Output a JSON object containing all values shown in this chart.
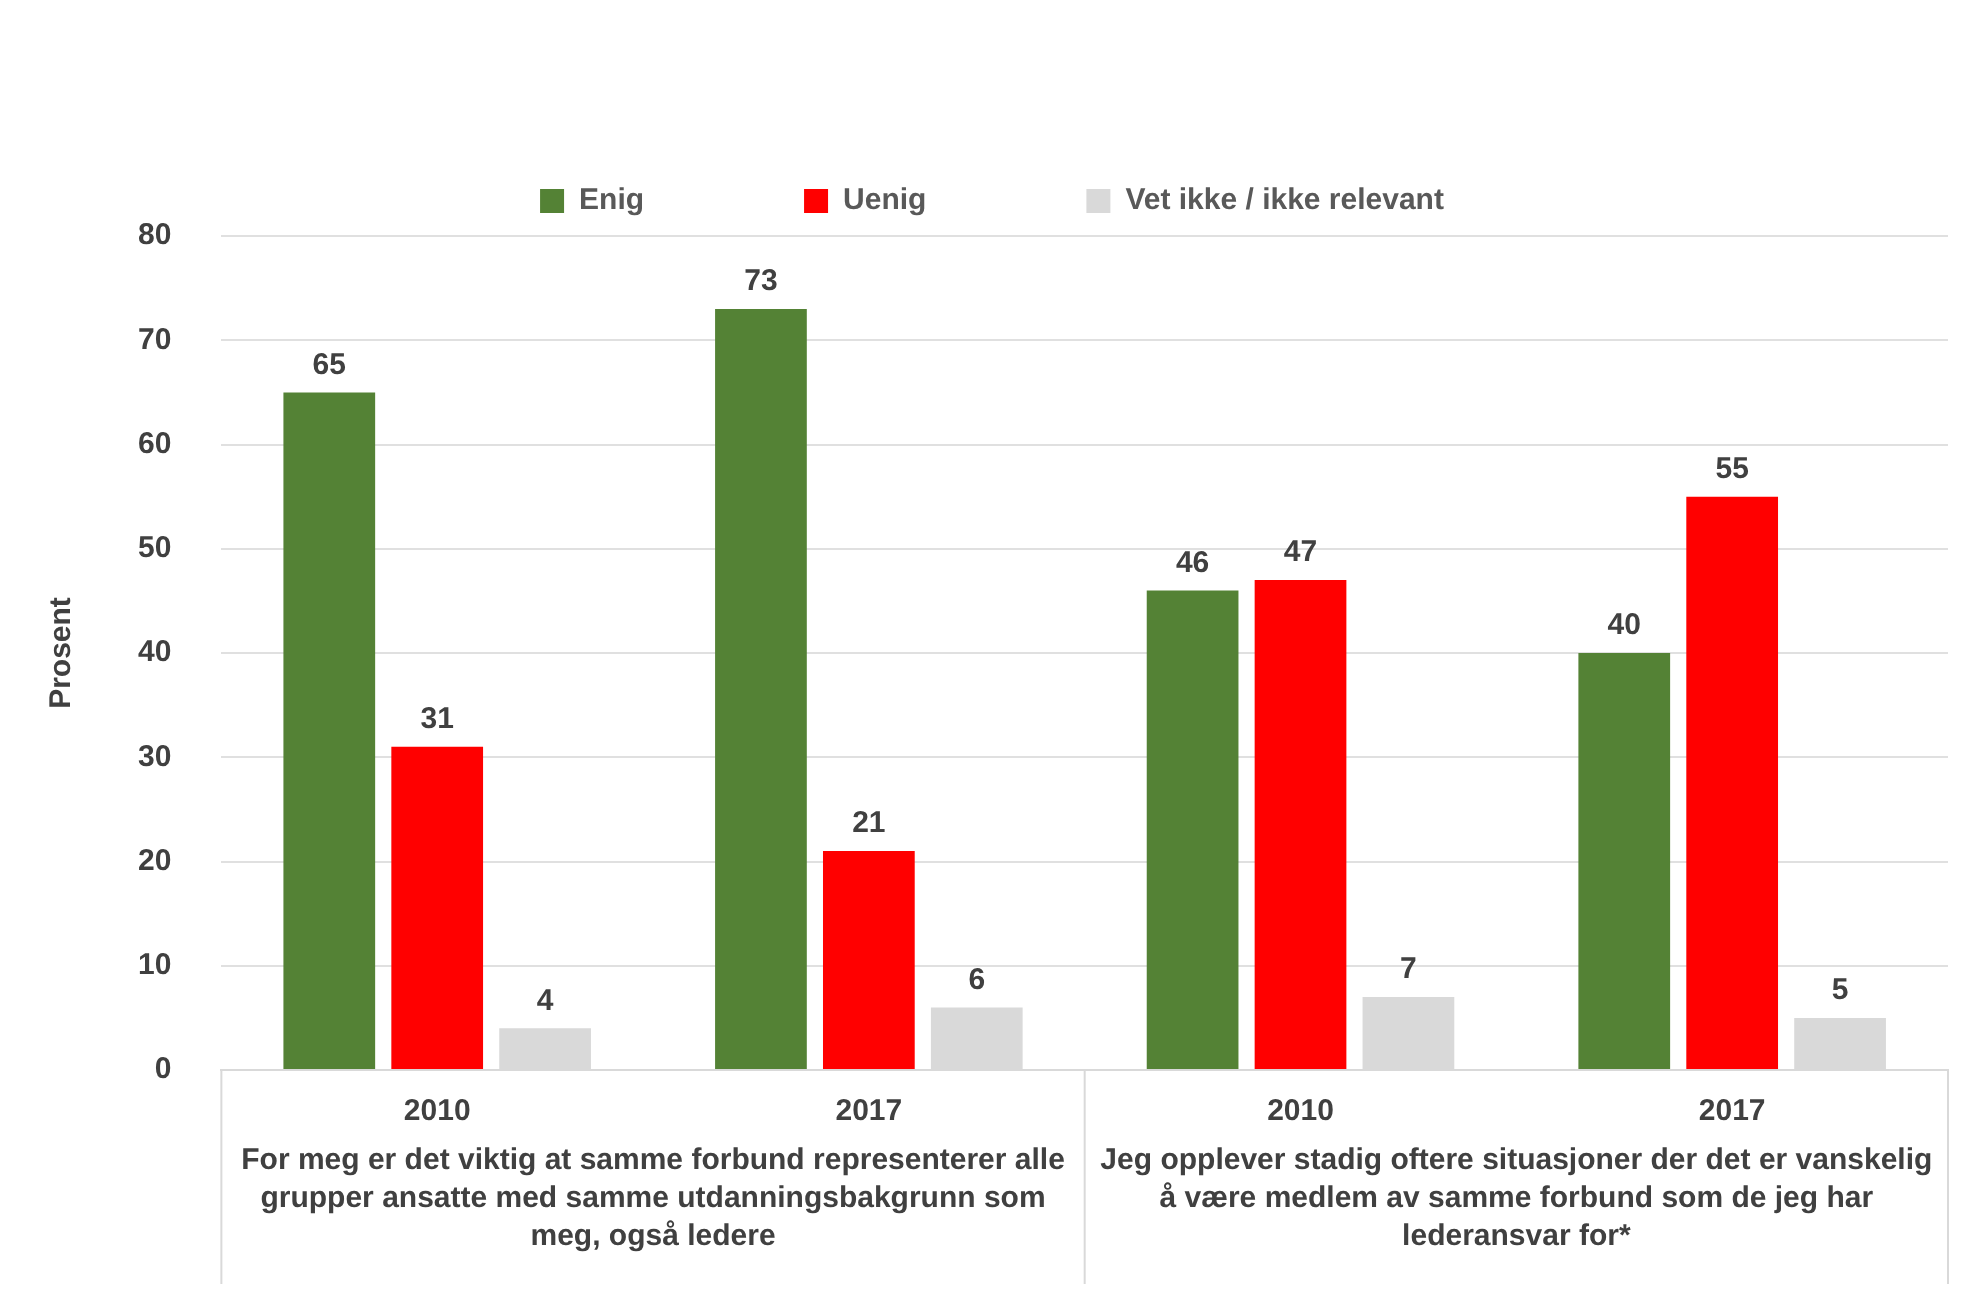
{
  "chart_data": {
    "type": "bar",
    "categories": [
      "2010",
      "2017",
      "2010",
      "2017"
    ],
    "ylabel": "Prosent",
    "ylim": [
      0,
      80
    ],
    "yticks": [
      0,
      10,
      20,
      30,
      40,
      50,
      60,
      70,
      80
    ],
    "grid": "y",
    "legend": "top",
    "data_labels": true,
    "series": [
      {
        "name": "Enig",
        "color": "#548235",
        "values": [
          65,
          73,
          46,
          40
        ]
      },
      {
        "name": "Uenig",
        "color": "#ff0000",
        "values": [
          31,
          21,
          47,
          55
        ]
      },
      {
        "name": "Vet ikke / ikke relevant",
        "color": "#d9d9d9",
        "values": [
          4,
          6,
          7,
          5
        ]
      }
    ],
    "annotations": [
      "For meg er det viktig at samme forbund representerer alle grupper ansatte med samme utdanningsbakgrunn som meg, også ledere",
      "Jeg opplever stadig oftere situasjoner der det er vanskelig å være medlem av samme forbund som de jeg har lederansvar for*"
    ]
  }
}
